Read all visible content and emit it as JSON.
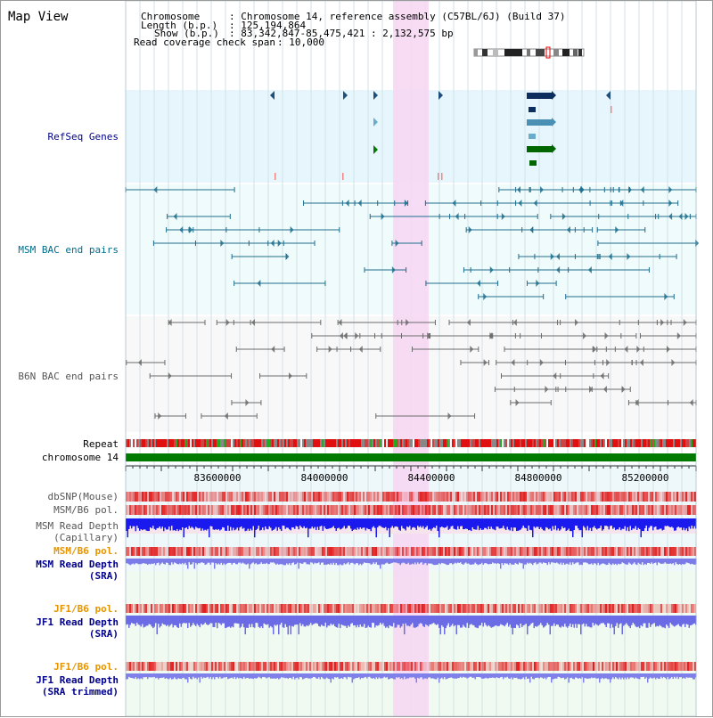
{
  "title": "Map View",
  "info": {
    "chromosome_key": "Chromosome",
    "chromosome_val": ": Chromosome 14, reference assembly (C57BL/6J) (Build 37)",
    "length_key": "Length (b.p.)",
    "length_val": ": 125,194,864",
    "show_key": "Show (b.p.)",
    "show_val": ": 83,342,847-85,475,421 : 2,132,575 bp",
    "span_key": "Read coverage check span",
    "span_val": ": 10,000"
  },
  "tracks": {
    "refseq": "RefSeq Genes",
    "msm_bac": "MSM BAC end pairs",
    "b6n_bac": "B6N BAC end pairs",
    "repeat": "Repeat",
    "chrom": "chromosome 14",
    "dbsnp": "dbSNP(Mouse)",
    "msm_b6_pol_1": "MSM/B6 pol.",
    "msm_depth_cap_1": "MSM Read Depth",
    "msm_depth_cap_2": "(Capillary)",
    "msm_b6_pol_2": "MSM/B6 pol.",
    "msm_depth_sra_1": "MSM Read Depth",
    "msm_depth_sra_2": "(SRA)",
    "jf1_pol_1": "JF1/B6 pol.",
    "jf1_depth_1": "JF1 Read Depth",
    "jf1_depth_2": "(SRA)",
    "jf1_pol_2": "JF1/B6 pol.",
    "jf1_trim_1": "JF1 Read Depth",
    "jf1_trim_2": "(SRA trimmed)"
  },
  "axis": {
    "ticks": [
      "83600000",
      "84000000",
      "84400000",
      "84800000",
      "85200000"
    ]
  },
  "colors": {
    "refseq_bg": "#e6f6fc",
    "bac_bg": "#f0fbfc",
    "highlight": "#f7d6f2",
    "chrom_bar": "#007a00",
    "label_blue": "#00008b",
    "label_orange": "#e69500",
    "label_teal": "#006c8c",
    "depth_blue": "#1a1aee"
  }
}
